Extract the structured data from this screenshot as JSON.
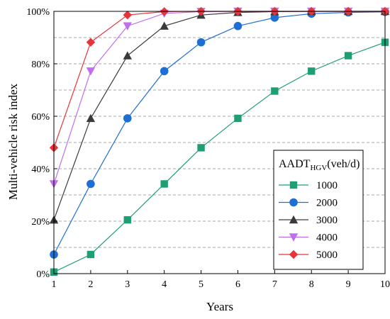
{
  "chart_data": {
    "type": "line",
    "xlabel": "Years",
    "ylabel": "Multi-vehicle risk index",
    "x": [
      1,
      2,
      3,
      4,
      5,
      6,
      7,
      8,
      9,
      10
    ],
    "xlim": [
      1,
      10
    ],
    "ylim": [
      0,
      100
    ],
    "y_ticks": [
      0,
      20,
      40,
      60,
      80,
      100
    ],
    "y_tick_labels": [
      "0%",
      "20%",
      "40%",
      "60%",
      "80%",
      "100%"
    ],
    "x_tick_labels": [
      "1",
      "2",
      "3",
      "4",
      "5",
      "6",
      "7",
      "8",
      "9",
      "10"
    ],
    "grid": "horizontal dashed",
    "legend_placement": "bottom-right",
    "legend_title": {
      "main": "AADT",
      "subscript": "HGV",
      "suffix": "(veh/d)"
    },
    "series": [
      {
        "name": "1000",
        "color": "#1e9e73",
        "marker": "square",
        "values": [
          0.6,
          7.3,
          20.5,
          34.2,
          48.0,
          59.2,
          69.6,
          77.2,
          83.1,
          88.2
        ]
      },
      {
        "name": "2000",
        "color": "#1f6ed4",
        "marker": "circle",
        "values": [
          7.3,
          34.2,
          59.2,
          77.2,
          88.2,
          94.4,
          97.6,
          99.1,
          99.6,
          99.8
        ]
      },
      {
        "name": "3000",
        "color": "#3a3a3a",
        "marker": "triangle-up",
        "values": [
          20.5,
          59.2,
          83.1,
          94.4,
          98.6,
          99.6,
          99.9,
          100,
          100,
          100
        ]
      },
      {
        "name": "4000",
        "color": "#bf6ef0",
        "marker": "triangle-down",
        "values": [
          34.2,
          77.2,
          94.4,
          99.2,
          99.9,
          100,
          100,
          100,
          100,
          100
        ]
      },
      {
        "name": "5000",
        "color": "#e8333a",
        "marker": "diamond",
        "values": [
          48.0,
          88.2,
          98.6,
          99.9,
          100,
          100,
          100,
          100,
          100,
          100
        ]
      }
    ]
  }
}
